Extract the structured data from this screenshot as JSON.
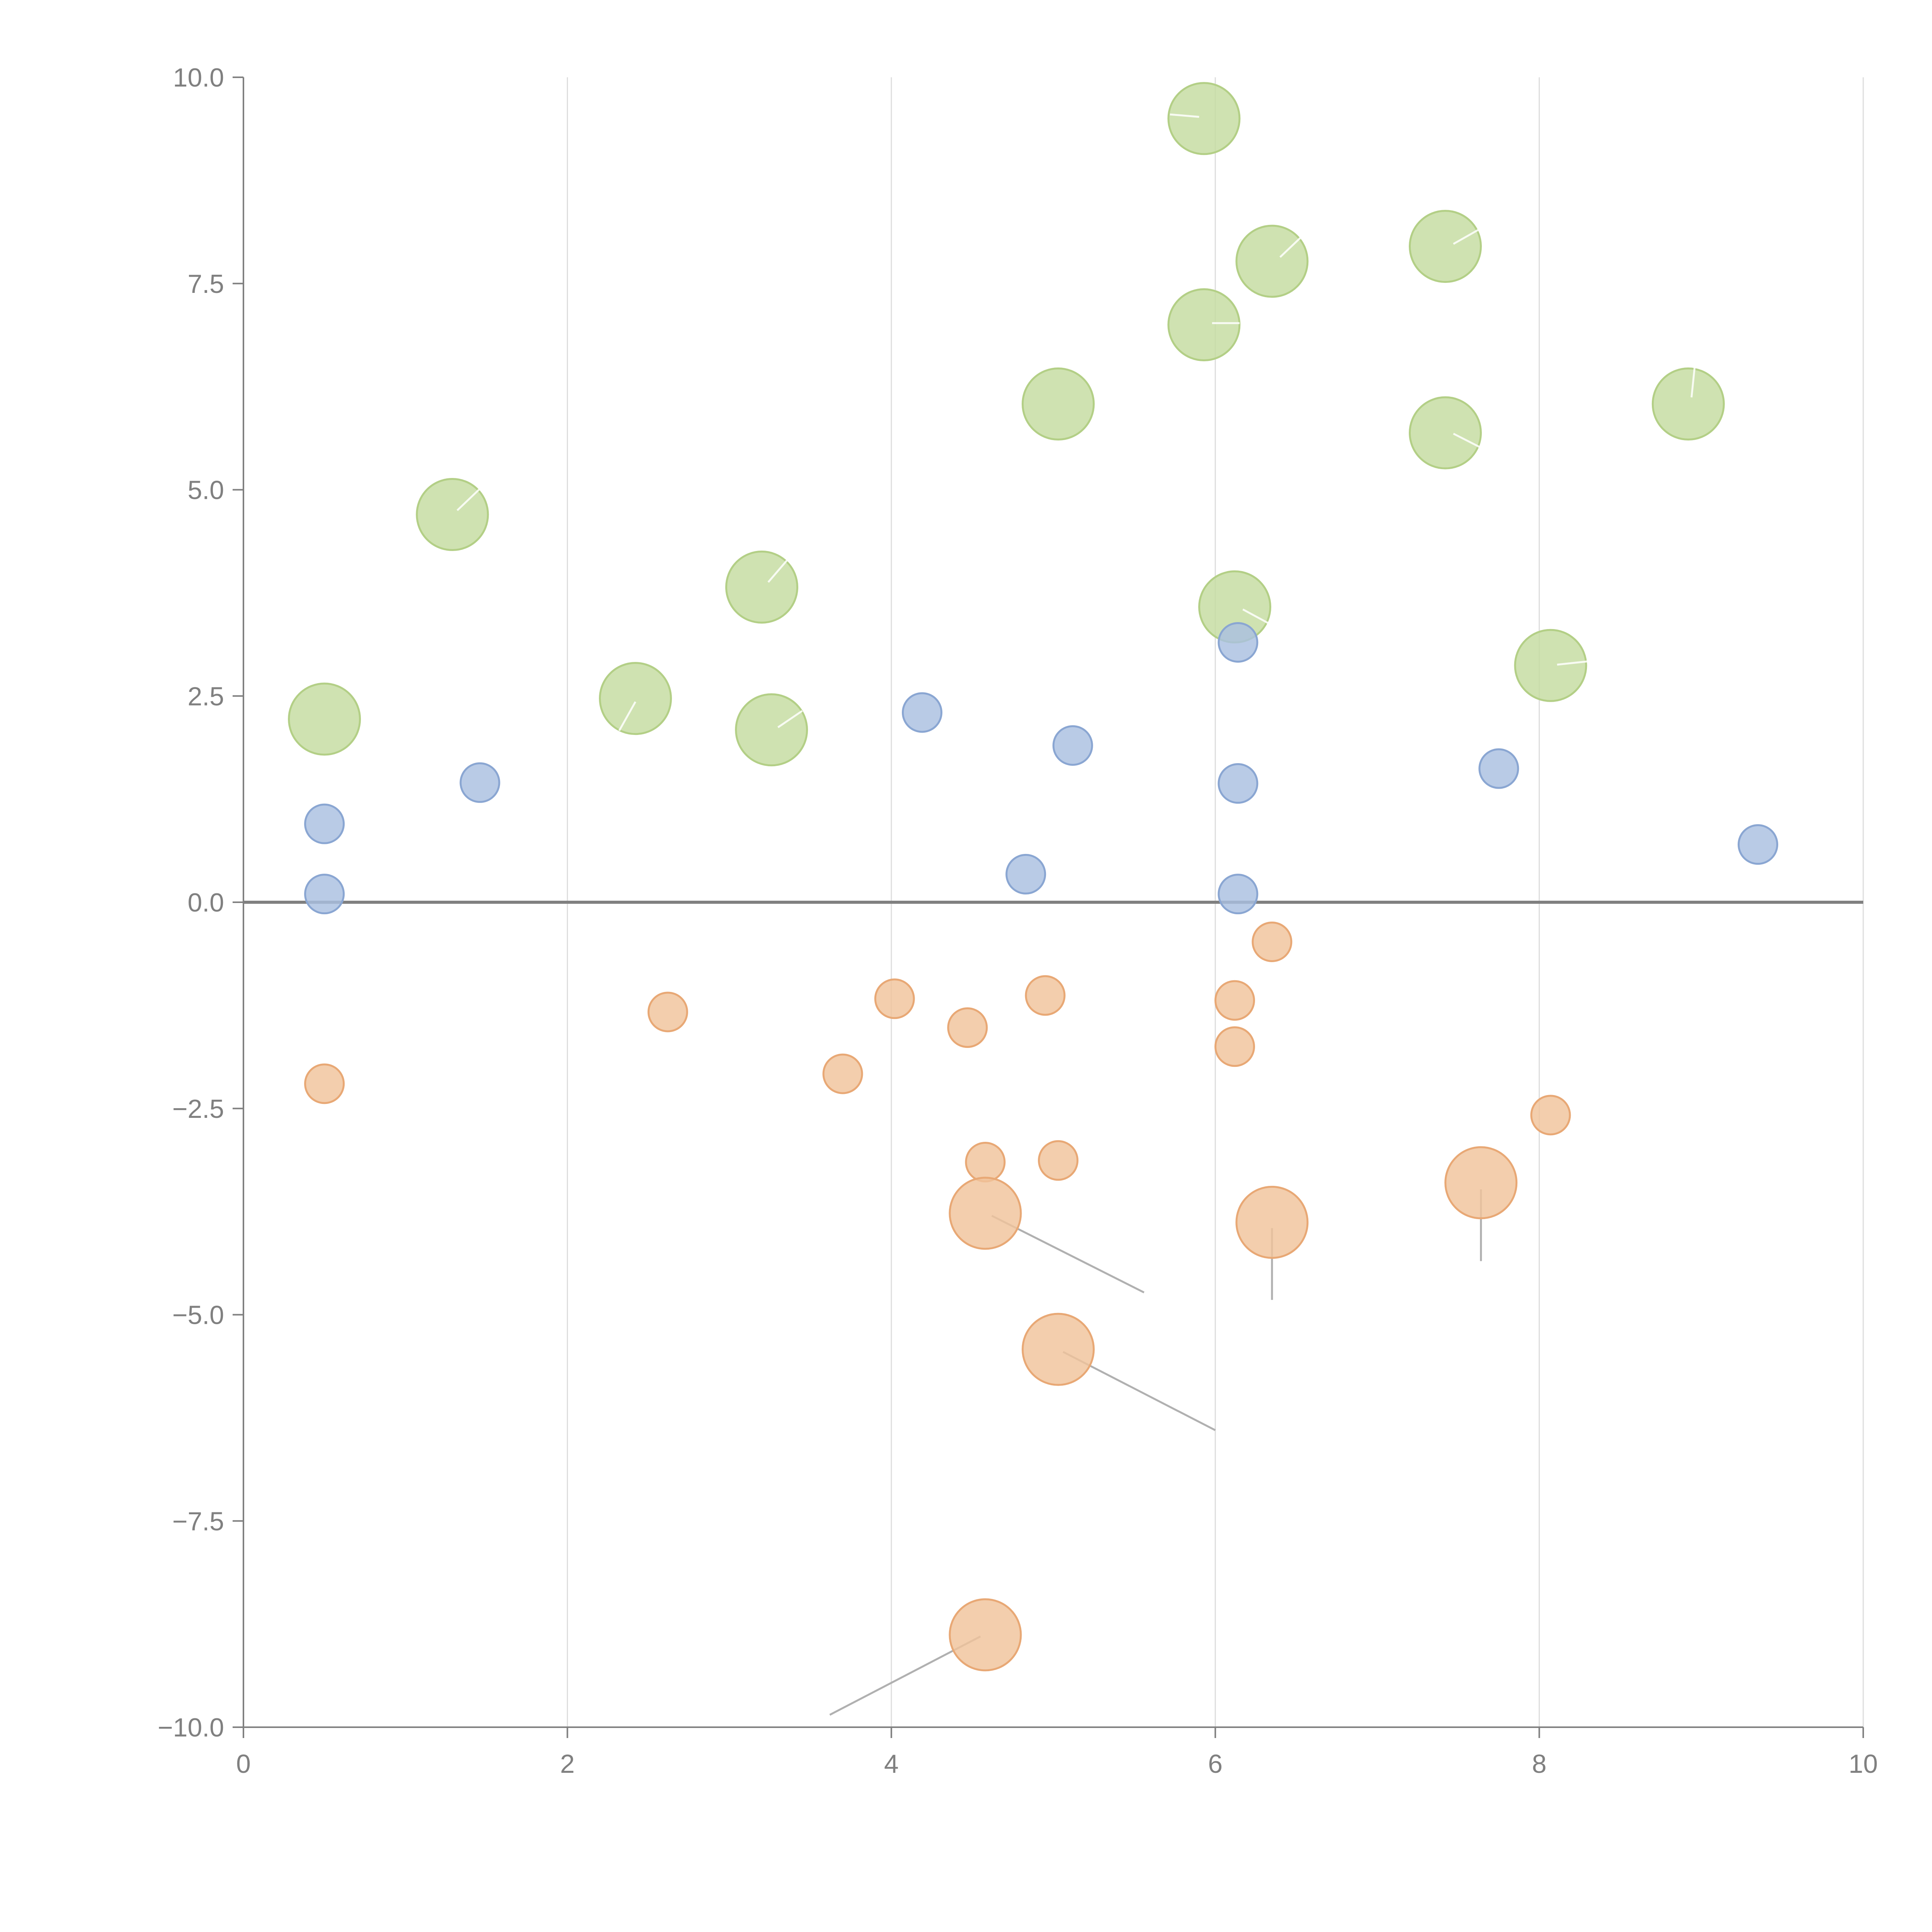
{
  "chart_data": {
    "type": "scatter",
    "title": "",
    "xlabel": "",
    "ylabel": "",
    "xlim": [
      0,
      10
    ],
    "ylim": [
      -10,
      10
    ],
    "grid": "vertical",
    "x_ticks": [
      0,
      2,
      4,
      6,
      8,
      10
    ],
    "y_ticks": [
      -10,
      -7.5,
      -5,
      -2.5,
      0,
      2.5,
      5,
      7.5,
      10
    ],
    "x_tick_labels": [
      "0",
      "2",
      "4",
      "6",
      "8",
      "10"
    ],
    "y_tick_labels": [
      "−10.0",
      "−7.5",
      "−5.0",
      "−2.5",
      "0.0",
      "2.5",
      "5.0",
      "7.5",
      "10.0"
    ],
    "series": [
      {
        "name": "green",
        "color": "#c5dca0",
        "stroke": "#b3cf86",
        "size": "large",
        "points": [
          {
            "x": 5.93,
            "y": 9.5
          },
          {
            "x": 6.35,
            "y": 7.77
          },
          {
            "x": 7.42,
            "y": 7.95
          },
          {
            "x": 5.93,
            "y": 7.0
          },
          {
            "x": 5.03,
            "y": 6.04
          },
          {
            "x": 8.92,
            "y": 6.04
          },
          {
            "x": 7.42,
            "y": 5.69
          },
          {
            "x": 1.29,
            "y": 4.7
          },
          {
            "x": 3.2,
            "y": 3.82
          },
          {
            "x": 6.12,
            "y": 3.58
          },
          {
            "x": 8.07,
            "y": 2.87
          },
          {
            "x": 0.5,
            "y": 2.22
          },
          {
            "x": 2.42,
            "y": 2.47
          },
          {
            "x": 3.26,
            "y": 2.09
          }
        ]
      },
      {
        "name": "blue",
        "color": "#a9bfe0",
        "stroke": "#8aa6d2",
        "size": "small",
        "points": [
          {
            "x": 0.5,
            "y": 0.95
          },
          {
            "x": 0.5,
            "y": 0.1
          },
          {
            "x": 1.46,
            "y": 1.45
          },
          {
            "x": 4.19,
            "y": 2.3
          },
          {
            "x": 5.12,
            "y": 1.9
          },
          {
            "x": 4.83,
            "y": 0.34
          },
          {
            "x": 6.14,
            "y": 3.15
          },
          {
            "x": 6.14,
            "y": 1.44
          },
          {
            "x": 6.14,
            "y": 0.1
          },
          {
            "x": 7.75,
            "y": 1.62
          },
          {
            "x": 9.35,
            "y": 0.7
          }
        ]
      },
      {
        "name": "orange",
        "color": "#f0c39b",
        "stroke": "#e8a875",
        "size": "small",
        "points": [
          {
            "x": 0.5,
            "y": -2.2
          },
          {
            "x": 2.62,
            "y": -1.33
          },
          {
            "x": 3.7,
            "y": -2.08
          },
          {
            "x": 4.02,
            "y": -1.17
          },
          {
            "x": 4.47,
            "y": -1.52
          },
          {
            "x": 4.95,
            "y": -1.13
          },
          {
            "x": 6.12,
            "y": -1.19
          },
          {
            "x": 6.12,
            "y": -1.75
          },
          {
            "x": 6.35,
            "y": -0.48
          },
          {
            "x": 4.58,
            "y": -3.15
          },
          {
            "x": 5.03,
            "y": -3.13
          },
          {
            "x": 8.07,
            "y": -2.58
          }
        ]
      },
      {
        "name": "orange-large",
        "color": "#f0c39b",
        "stroke": "#e8a875",
        "size": "large",
        "points": [
          {
            "x": 4.58,
            "y": -3.77
          },
          {
            "x": 6.35,
            "y": -3.88
          },
          {
            "x": 7.64,
            "y": -3.4
          },
          {
            "x": 5.03,
            "y": -5.42
          },
          {
            "x": 4.58,
            "y": -8.88
          }
        ]
      }
    ],
    "leader_lines": [
      {
        "from": [
          4.62,
          -3.8
        ],
        "to": [
          5.56,
          -4.73
        ],
        "tone": "dark"
      },
      {
        "from": [
          6.35,
          -3.95
        ],
        "to": [
          6.35,
          -4.82
        ],
        "tone": "dark"
      },
      {
        "from": [
          7.64,
          -3.48
        ],
        "to": [
          7.64,
          -4.35
        ],
        "tone": "dark"
      },
      {
        "from": [
          5.06,
          -5.45
        ],
        "to": [
          6.0,
          -6.4
        ],
        "tone": "dark"
      },
      {
        "from": [
          4.55,
          -8.9
        ],
        "to": [
          3.62,
          -9.85
        ],
        "tone": "dark"
      },
      {
        "from": [
          5.9,
          9.52
        ],
        "to": [
          5.72,
          9.55
        ],
        "tone": "light"
      },
      {
        "from": [
          6.4,
          7.82
        ],
        "to": [
          6.55,
          8.1
        ],
        "tone": "light"
      },
      {
        "from": [
          7.47,
          7.98
        ],
        "to": [
          7.65,
          8.18
        ],
        "tone": "light"
      },
      {
        "from": [
          5.98,
          7.02
        ],
        "to": [
          6.15,
          7.02
        ],
        "tone": "light"
      },
      {
        "from": [
          8.94,
          6.12
        ],
        "to": [
          8.96,
          6.5
        ],
        "tone": "light"
      },
      {
        "from": [
          7.47,
          5.68
        ],
        "to": [
          7.65,
          5.5
        ],
        "tone": "light"
      },
      {
        "from": [
          1.32,
          4.75
        ],
        "to": [
          1.48,
          5.05
        ],
        "tone": "light"
      },
      {
        "from": [
          3.24,
          3.88
        ],
        "to": [
          3.38,
          4.2
        ],
        "tone": "light"
      },
      {
        "from": [
          6.17,
          3.55
        ],
        "to": [
          6.33,
          3.38
        ],
        "tone": "light"
      },
      {
        "from": [
          8.11,
          2.88
        ],
        "to": [
          8.3,
          2.92
        ],
        "tone": "light"
      },
      {
        "from": [
          2.42,
          2.43
        ],
        "to": [
          2.32,
          2.08
        ],
        "tone": "light"
      },
      {
        "from": [
          3.3,
          2.12
        ],
        "to": [
          3.45,
          2.32
        ],
        "tone": "light"
      }
    ]
  }
}
